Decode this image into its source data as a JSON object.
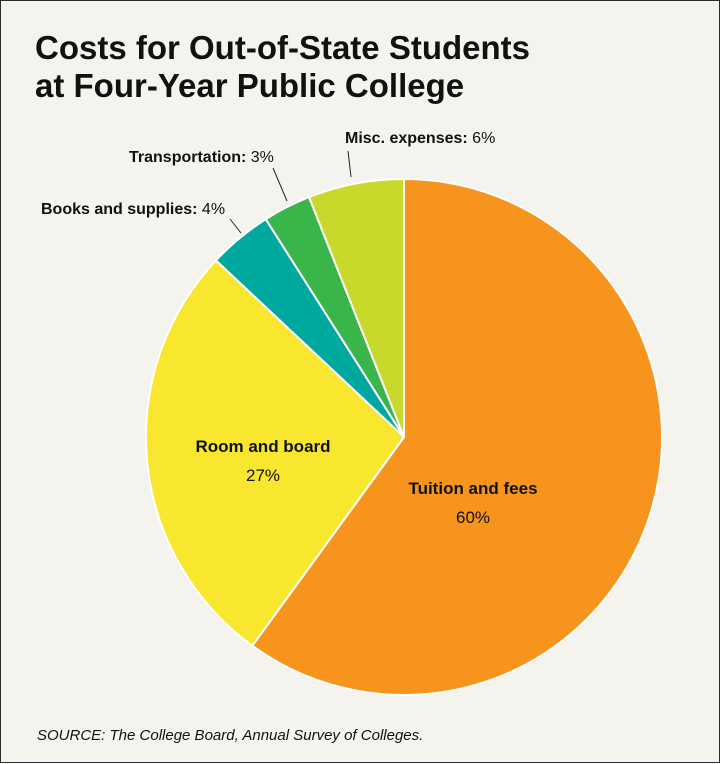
{
  "chart_data": {
    "type": "pie",
    "title": "Costs for Out-of-State Students\nat Four-Year Public College",
    "source": "SOURCE: The College Board, Annual Survey of Colleges.",
    "slices": [
      {
        "name": "Tuition and fees",
        "value": 60,
        "pct_text": "60%",
        "color": "#f7941d",
        "label_mode": "inside"
      },
      {
        "name": "Room and board",
        "value": 27,
        "pct_text": "27%",
        "color": "#f9e62e",
        "label_mode": "inside"
      },
      {
        "name": "Books and supplies:",
        "value": 4,
        "pct_text": "4%",
        "color": "#00a99d",
        "label_mode": "outside"
      },
      {
        "name": "Transportation:",
        "value": 3,
        "pct_text": "3%",
        "color": "#39b54a",
        "label_mode": "outside"
      },
      {
        "name": "Misc. expenses:",
        "value": 6,
        "pct_text": "6%",
        "color": "#c8d92c",
        "label_mode": "outside"
      }
    ],
    "start": "12 o'clock",
    "direction": "clockwise",
    "legend": "none"
  }
}
